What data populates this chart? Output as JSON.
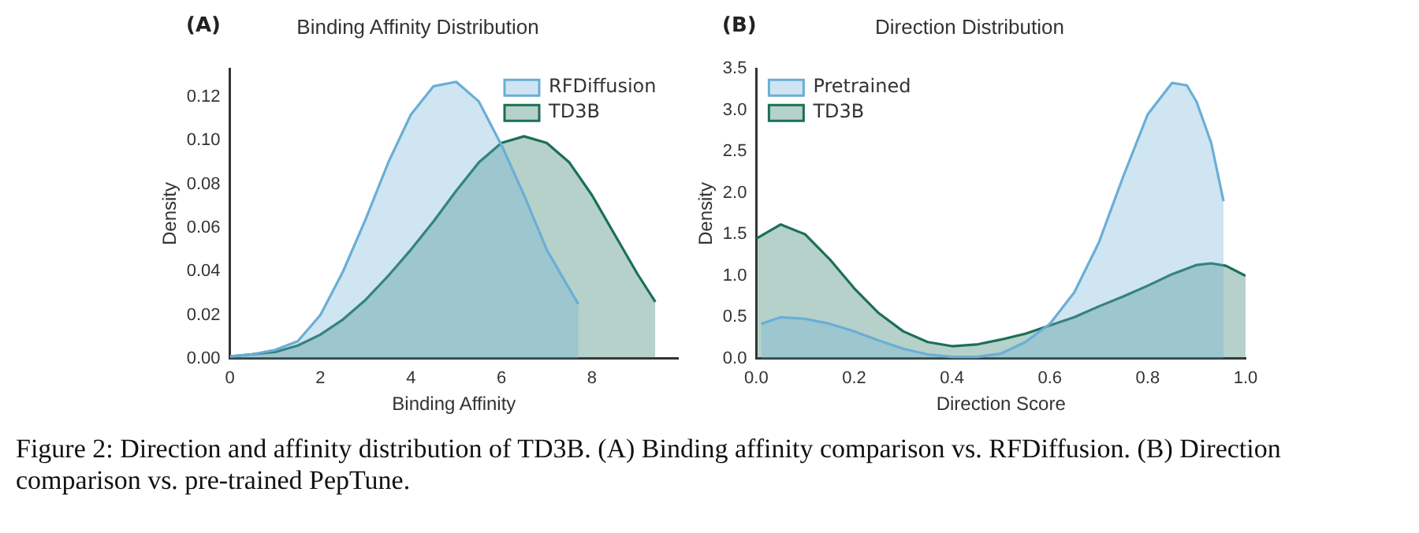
{
  "chart_data": [
    {
      "type": "area",
      "title": "Binding Affinity Distribution",
      "xlabel": "Binding Affinity",
      "ylabel": "Density",
      "annotations": [
        "(A)"
      ],
      "xlim": [
        0,
        9.9
      ],
      "xticks": [
        0,
        2,
        4,
        6,
        8
      ],
      "ylim": [
        0,
        0.133
      ],
      "yticks": [
        {
          "value": 0,
          "label": "0.00"
        },
        {
          "value": 0.02,
          "label": "0.02"
        },
        {
          "value": 0.04,
          "label": "0.04"
        },
        {
          "value": 0.06,
          "label": "0.06"
        },
        {
          "value": 0.08,
          "label": "0.08"
        },
        {
          "value": 0.1,
          "label": "0.10"
        },
        {
          "value": 0.12,
          "label": "0.12"
        }
      ],
      "grid": false,
      "legend": "top right",
      "series": [
        {
          "name": "RFDiffusion",
          "color": "#6aaed6",
          "x": [
            0,
            0.5,
            1,
            1.5,
            2,
            2.5,
            3,
            3.5,
            4,
            4.5,
            5,
            5.5,
            6,
            6.5,
            7,
            7.5,
            7.7
          ],
          "values": [
            0.001,
            0.002,
            0.004,
            0.008,
            0.02,
            0.04,
            0.064,
            0.09,
            0.112,
            0.125,
            0.127,
            0.118,
            0.098,
            0.075,
            0.05,
            0.032,
            0.025
          ]
        },
        {
          "name": "TD3B",
          "color": "#1b6f5a",
          "x": [
            0,
            0.5,
            1,
            1.5,
            2,
            2.5,
            3,
            3.5,
            4,
            4.5,
            5,
            5.5,
            6,
            6.5,
            7,
            7.5,
            8,
            8.5,
            9,
            9.4
          ],
          "values": [
            0.001,
            0.002,
            0.003,
            0.006,
            0.011,
            0.018,
            0.027,
            0.038,
            0.05,
            0.063,
            0.077,
            0.09,
            0.099,
            0.102,
            0.099,
            0.09,
            0.075,
            0.057,
            0.039,
            0.026
          ]
        }
      ]
    },
    {
      "type": "area",
      "title": "Direction Distribution",
      "xlabel": "Direction Score",
      "ylabel": "Density",
      "annotations": [
        "(B)",
        "Figure 2: Direction and affinity distribution of TD3B. (A) Binding affinity comparison vs. RFDiffusion. (B) Direction comparison vs. pre-trained PepTune."
      ],
      "xlim": [
        0,
        1
      ],
      "xticks": [
        {
          "value": 0,
          "label": "0.0"
        },
        {
          "value": 0.2,
          "label": "0.2"
        },
        {
          "value": 0.4,
          "label": "0.4"
        },
        {
          "value": 0.6,
          "label": "0.6"
        },
        {
          "value": 0.8,
          "label": "0.8"
        },
        {
          "value": 1,
          "label": "1.0"
        }
      ],
      "ylim": [
        0,
        3.5
      ],
      "yticks": [
        {
          "value": 0,
          "label": "0.0"
        },
        {
          "value": 0.5,
          "label": "0.5"
        },
        {
          "value": 1,
          "label": "1.0"
        },
        {
          "value": 1.5,
          "label": "1.5"
        },
        {
          "value": 2,
          "label": "2.0"
        },
        {
          "value": 2.5,
          "label": "2.5"
        },
        {
          "value": 3,
          "label": "3.0"
        },
        {
          "value": 3.5,
          "label": "3.5"
        }
      ],
      "grid": false,
      "legend": "top left",
      "series": [
        {
          "name": "Pretrained",
          "color": "#6aaed6",
          "x": [
            0.01,
            0.05,
            0.1,
            0.15,
            0.2,
            0.25,
            0.3,
            0.35,
            0.4,
            0.45,
            0.5,
            0.55,
            0.6,
            0.65,
            0.7,
            0.75,
            0.8,
            0.85,
            0.88,
            0.9,
            0.93,
            0.955
          ],
          "values": [
            0.42,
            0.5,
            0.48,
            0.42,
            0.33,
            0.22,
            0.12,
            0.05,
            0.02,
            0.02,
            0.06,
            0.2,
            0.42,
            0.8,
            1.4,
            2.2,
            2.95,
            3.33,
            3.3,
            3.1,
            2.6,
            1.9
          ]
        },
        {
          "name": "TD3B",
          "color": "#1b6f5a",
          "x": [
            0,
            0.05,
            0.1,
            0.15,
            0.2,
            0.25,
            0.3,
            0.35,
            0.4,
            0.45,
            0.5,
            0.55,
            0.6,
            0.65,
            0.7,
            0.75,
            0.8,
            0.85,
            0.9,
            0.93,
            0.96,
            1
          ],
          "values": [
            1.45,
            1.62,
            1.5,
            1.2,
            0.85,
            0.55,
            0.33,
            0.2,
            0.15,
            0.17,
            0.23,
            0.3,
            0.4,
            0.5,
            0.63,
            0.75,
            0.88,
            1.02,
            1.13,
            1.15,
            1.12,
            1.0
          ]
        }
      ]
    }
  ]
}
